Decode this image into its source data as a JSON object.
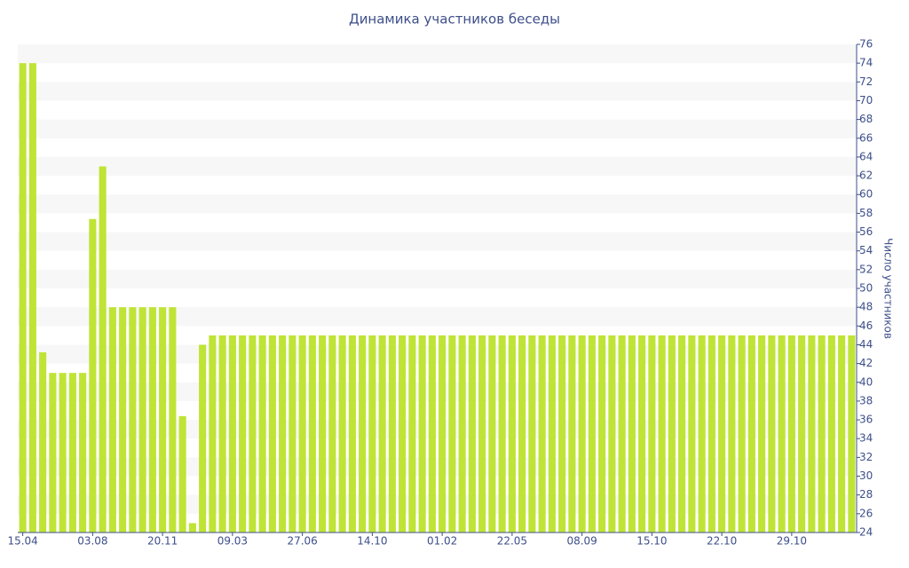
{
  "chart_data": {
    "type": "bar",
    "title": "Динамика участников беседы",
    "y_label": "Число участников",
    "categories": [
      "15.04",
      null,
      null,
      null,
      null,
      null,
      null,
      "03.08",
      null,
      null,
      null,
      null,
      null,
      null,
      "20.11",
      null,
      null,
      null,
      null,
      null,
      null,
      "09.03",
      null,
      null,
      null,
      null,
      null,
      null,
      "27.06",
      null,
      null,
      null,
      null,
      null,
      null,
      "14.10",
      null,
      null,
      null,
      null,
      null,
      null,
      "01.02",
      null,
      null,
      null,
      null,
      null,
      null,
      "22.05",
      null,
      null,
      null,
      null,
      null,
      null,
      "08.09",
      null,
      null,
      null,
      null,
      null,
      null,
      "15.10",
      null,
      null,
      null,
      null,
      null,
      null,
      "22.10",
      null,
      null,
      null,
      null,
      null,
      null,
      "29.10",
      null,
      null,
      null,
      null,
      null,
      null
    ],
    "values": [
      74,
      74,
      43.2,
      41,
      41,
      41,
      41,
      57.4,
      63,
      48,
      48,
      48,
      48,
      48,
      48,
      48,
      36.4,
      25,
      44,
      45,
      45,
      45,
      45,
      45,
      45,
      45,
      45,
      45,
      45,
      45,
      45,
      45,
      45,
      45,
      45,
      45,
      45,
      45,
      45,
      45,
      45,
      45,
      45,
      45,
      45,
      45,
      45,
      45,
      45,
      45,
      45,
      45,
      45,
      45,
      45,
      45,
      45,
      45,
      45,
      45,
      45,
      45,
      45,
      45,
      45,
      45,
      45,
      45,
      45,
      45,
      45,
      45,
      45,
      45,
      45,
      45,
      45,
      45,
      45,
      45,
      45,
      45,
      45,
      45
    ],
    "color": "#bfe436",
    "ylim": [
      24,
      76
    ],
    "yticks": [
      24,
      26,
      28,
      30,
      32,
      34,
      36,
      38,
      40,
      42,
      44,
      46,
      48,
      50,
      52,
      54,
      56,
      58,
      60,
      62,
      64,
      66,
      68,
      70,
      72,
      74,
      76
    ],
    "y_axis_side": "right",
    "grid": true
  }
}
